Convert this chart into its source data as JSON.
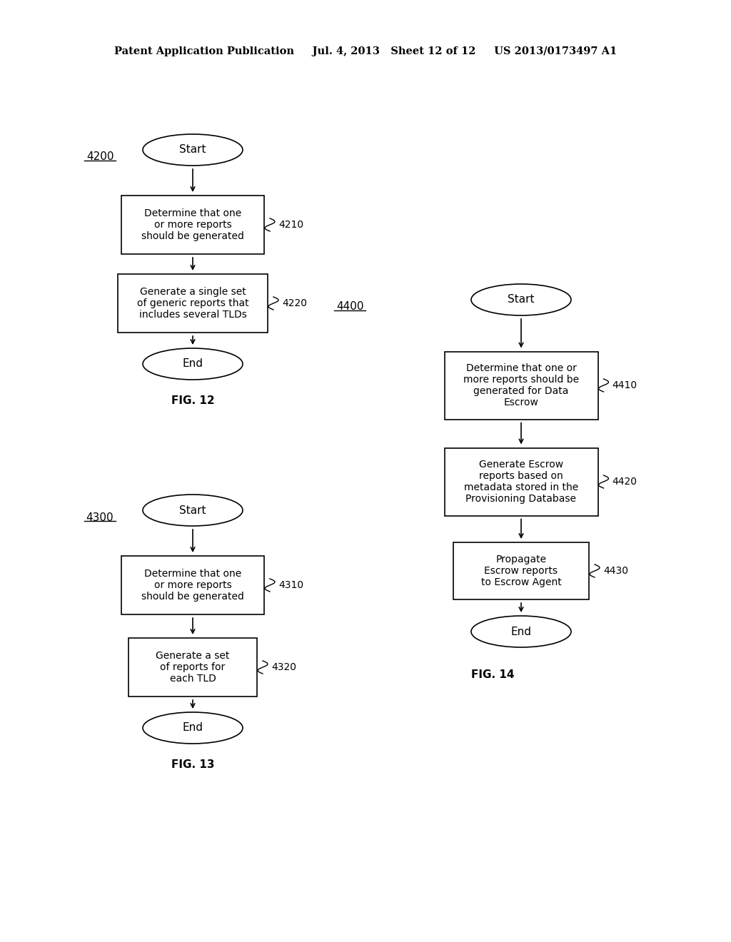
{
  "header": "Patent Application Publication     Jul. 4, 2013   Sheet 12 of 12     US 2013/0173497 A1",
  "bg_color": "#ffffff",
  "fig12": {
    "label": "4200",
    "fig_label": "FIG. 12",
    "nodes": [
      {
        "id": "start",
        "type": "oval",
        "text": "Start"
      },
      {
        "id": "4210",
        "type": "rect",
        "text": "Determine that one\nor more reports\nshould be generated",
        "ref": "4210"
      },
      {
        "id": "4220",
        "type": "rect",
        "text": "Generate a single set\nof generic reports that\nincludes several TLDs",
        "ref": "4220"
      },
      {
        "id": "end",
        "type": "oval",
        "text": "End"
      }
    ]
  },
  "fig13": {
    "label": "4300",
    "fig_label": "FIG. 13",
    "nodes": [
      {
        "id": "start",
        "type": "oval",
        "text": "Start"
      },
      {
        "id": "4310",
        "type": "rect",
        "text": "Determine that one\nor more reports\nshould be generated",
        "ref": "4310"
      },
      {
        "id": "4320",
        "type": "rect",
        "text": "Generate a set\nof reports for\neach TLD",
        "ref": "4320"
      },
      {
        "id": "end",
        "type": "oval",
        "text": "End"
      }
    ]
  },
  "fig14": {
    "label": "4400",
    "fig_label": "FIG. 14",
    "nodes": [
      {
        "id": "start",
        "type": "oval",
        "text": "Start"
      },
      {
        "id": "4410",
        "type": "rect",
        "text": "Determine that one or\nmore reports should be\ngenerated for Data\nEscrow",
        "ref": "4410"
      },
      {
        "id": "4420",
        "type": "rect",
        "text": "Generate Escrow\nreports based on\nmetadata stored in the\nProvisioning Database",
        "ref": "4420"
      },
      {
        "id": "4430",
        "type": "rect",
        "text": "Propagate\nEscrow reports\nto Escrow Agent",
        "ref": "4430"
      },
      {
        "id": "end",
        "type": "oval",
        "text": "End"
      }
    ]
  }
}
